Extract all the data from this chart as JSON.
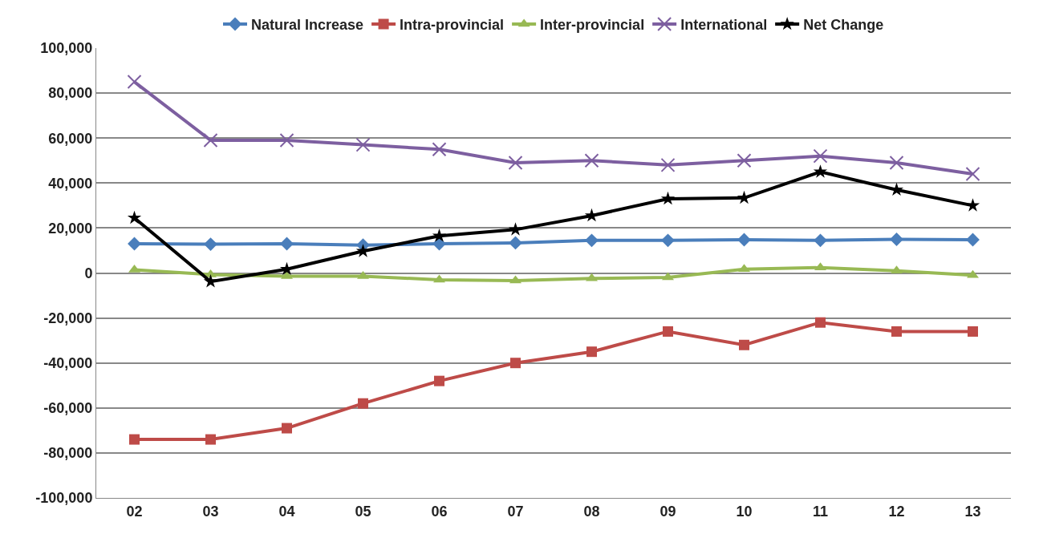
{
  "chart_data": {
    "type": "line",
    "categories": [
      "02",
      "03",
      "04",
      "05",
      "06",
      "07",
      "08",
      "09",
      "10",
      "11",
      "12",
      "13"
    ],
    "series": [
      {
        "name": "Natural Increase",
        "color": "#4a7ebb",
        "marker": "diamond",
        "values": [
          13000,
          12800,
          13000,
          12400,
          13000,
          13400,
          14500,
          14500,
          14800,
          14500,
          15000,
          14800
        ]
      },
      {
        "name": "Intra-provincial",
        "color": "#be4b48",
        "marker": "square",
        "values": [
          -74000,
          -74000,
          -69000,
          -58000,
          -48000,
          -40000,
          -35000,
          -26000,
          -32000,
          -22000,
          -26000,
          -26000
        ]
      },
      {
        "name": "Inter-provincial",
        "color": "#98b954",
        "marker": "triangle",
        "values": [
          1400,
          -700,
          -1400,
          -1400,
          -3000,
          -3400,
          -2400,
          -2000,
          1700,
          2400,
          1000,
          -1000
        ]
      },
      {
        "name": "International",
        "color": "#7d5fa0",
        "marker": "cross",
        "values": [
          85000,
          59000,
          59000,
          57000,
          55000,
          49000,
          50000,
          48000,
          50000,
          52000,
          49000,
          44000
        ]
      },
      {
        "name": "Net Change",
        "color": "#000000",
        "marker": "star",
        "values": [
          24500,
          -3800,
          1700,
          9700,
          16500,
          19300,
          25500,
          33000,
          33400,
          45000,
          37000,
          30000
        ]
      }
    ],
    "ylim": [
      -100000,
      100000
    ],
    "yticks": [
      {
        "value": -100000,
        "label": "-100,000"
      },
      {
        "value": -80000,
        "label": "-80,000"
      },
      {
        "value": -60000,
        "label": "-60,000"
      },
      {
        "value": -40000,
        "label": "-40,000"
      },
      {
        "value": -20000,
        "label": "-20,000"
      },
      0,
      {
        "value": 20000,
        "label": "20,000"
      },
      {
        "value": 40000,
        "label": "40,000"
      },
      {
        "value": 60000,
        "label": "60,000"
      },
      {
        "value": 80000,
        "label": "80,000"
      },
      {
        "value": 100000,
        "label": "100,000"
      }
    ],
    "grid": "y",
    "legend": "top",
    "line_style": "solid"
  }
}
